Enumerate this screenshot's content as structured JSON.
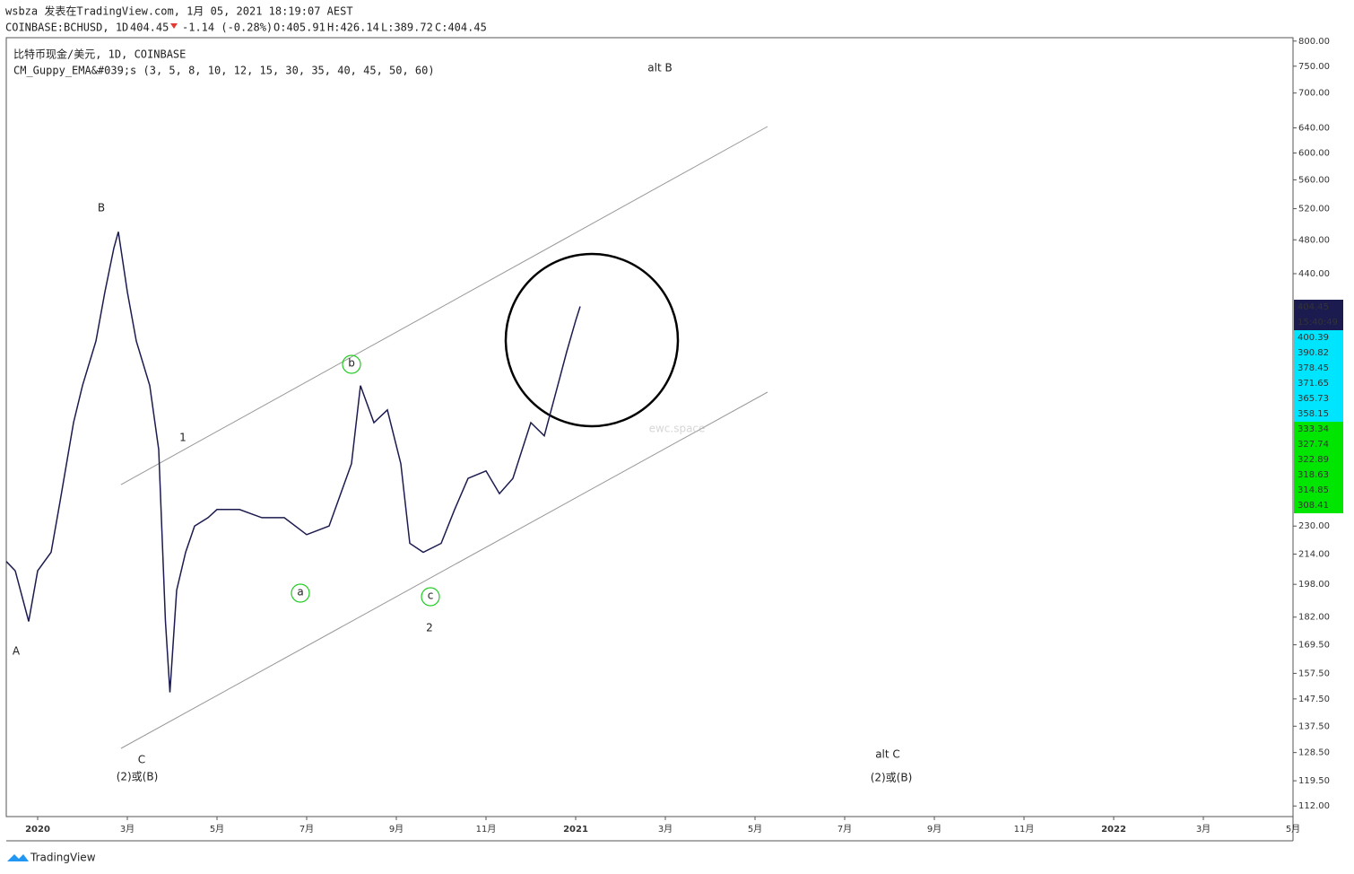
{
  "header": {
    "line1": "wsbza 发表在TradingView.com, 1月 05, 2021 18:19:07 AEST",
    "symbol": "COINBASE:BCHUSD, 1D",
    "last": "404.45",
    "change": "-1.14 (-0.28%)",
    "ohlc": [
      "O:405.91",
      "H:426.14",
      "L:389.72",
      "C:404.45"
    ],
    "pane_title": "比特币现金/美元, 1D, COINBASE",
    "indicator": "CM_Guppy_EMA&#039;s (3, 5, 8, 10, 12, 15, 30, 35, 40, 45, 50, 60)",
    "watermark": "ewc.space",
    "footer": "TradingView"
  },
  "chart_data": {
    "type": "line",
    "log_scale": true,
    "color": "#1b1b4f",
    "x": [
      -0.7,
      -0.5,
      -0.2,
      0,
      0.3,
      0.5,
      0.8,
      1,
      1.3,
      1.5,
      1.7,
      1.8,
      2.0,
      2.2,
      2.5,
      2.7,
      2.85,
      2.95,
      3.1,
      3.3,
      3.5,
      3.8,
      4.0,
      4.5,
      5,
      5.5,
      6,
      6.5,
      7,
      7.2,
      7.5,
      7.8,
      8.1,
      8.3,
      8.6,
      9.0,
      9.3,
      9.6,
      10,
      10.3,
      10.6,
      11,
      11.3,
      11.6,
      11.8,
      12.0,
      12.1
    ],
    "values": [
      210,
      205,
      180,
      205,
      215,
      245,
      300,
      330,
      370,
      420,
      470,
      490,
      420,
      370,
      330,
      280,
      180,
      150,
      195,
      215,
      230,
      235,
      240,
      240,
      235,
      235,
      225,
      230,
      270,
      330,
      300,
      310,
      270,
      220,
      215,
      220,
      240,
      260,
      265,
      250,
      260,
      300,
      290,
      330,
      360,
      390,
      404.45
    ],
    "xlim": [
      -0.7,
      28.0
    ],
    "ylim": [
      109,
      807
    ],
    "xticks": [
      {
        "value": 0,
        "label": "2020"
      },
      {
        "value": 2,
        "label": "3月"
      },
      {
        "value": 4,
        "label": "5月"
      },
      {
        "value": 6,
        "label": "7月"
      },
      {
        "value": 8,
        "label": "9月"
      },
      {
        "value": 10,
        "label": "11月"
      },
      {
        "value": 12,
        "label": "2021"
      },
      {
        "value": 14,
        "label": "3月"
      },
      {
        "value": 16,
        "label": "5月"
      },
      {
        "value": 18,
        "label": "7月"
      },
      {
        "value": 20,
        "label": "9月"
      },
      {
        "value": 22,
        "label": "11月"
      },
      {
        "value": 24,
        "label": "2022"
      },
      {
        "value": 26,
        "label": "3月"
      },
      {
        "value": 28,
        "label": "5月"
      }
    ],
    "yticks": [
      {
        "value": 800,
        "label": "800.00"
      },
      {
        "value": 750,
        "label": "750.00"
      },
      {
        "value": 700,
        "label": "700.00"
      },
      {
        "value": 640,
        "label": "640.00"
      },
      {
        "value": 600,
        "label": "600.00"
      },
      {
        "value": 560,
        "label": "560.00"
      },
      {
        "value": 520,
        "label": "520.00"
      },
      {
        "value": 480,
        "label": "480.00"
      },
      {
        "value": 440,
        "label": "440.00"
      },
      {
        "value": 230,
        "label": "230.00"
      },
      {
        "value": 214,
        "label": "214.00"
      },
      {
        "value": 198,
        "label": "198.00"
      },
      {
        "value": 182,
        "label": "182.00"
      },
      {
        "value": 169.5,
        "label": "169.50"
      },
      {
        "value": 157.5,
        "label": "157.50"
      },
      {
        "value": 147.5,
        "label": "147.50"
      },
      {
        "value": 137.5,
        "label": "137.50"
      },
      {
        "value": 128.5,
        "label": "128.50"
      },
      {
        "value": 119.5,
        "label": "119.50"
      },
      {
        "value": 112,
        "label": "112.00"
      }
    ],
    "price_tags": [
      "404.45",
      "15:40:49"
    ],
    "ema_fast_tags": [
      "400.39",
      "390.82",
      "378.45",
      "371.65",
      "365.73",
      "358.15"
    ],
    "ema_slow_tags": [
      "333.34",
      "327.74",
      "322.89",
      "318.63",
      "314.85",
      "308.41"
    ],
    "annotations": [
      "alt B",
      "B",
      "A",
      "C",
      "(2)或(B)",
      "1",
      "2",
      "alt C",
      "(2)或(B)",
      "a",
      "b",
      "c"
    ]
  }
}
